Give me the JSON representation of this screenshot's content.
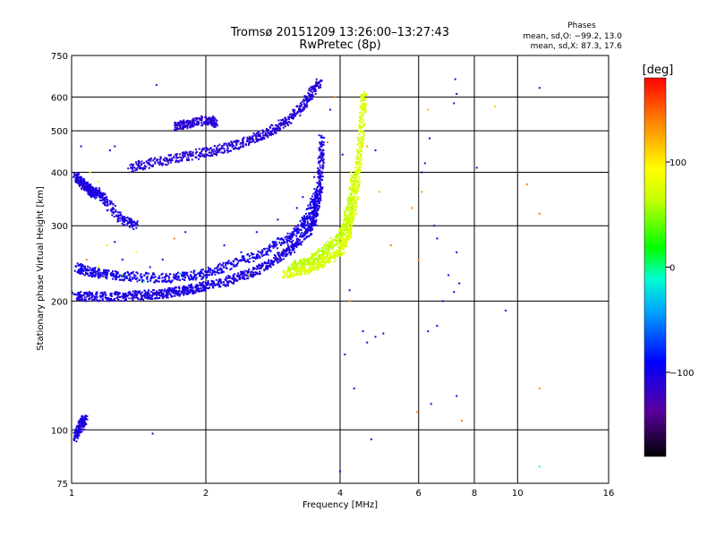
{
  "chart_data": {
    "type": "scatter",
    "title": "Tromsø 20151209 13:26:00–13:27:43",
    "subtitle": "RwPretec (8p)",
    "xlabel": "Frequency [MHz]",
    "ylabel": "Stationary phase Virtual Height [km]",
    "x_scale": "log",
    "y_scale": "log",
    "xlim": [
      1,
      16
    ],
    "ylim": [
      75,
      750
    ],
    "x_ticks": [
      1,
      2,
      4,
      6,
      8,
      10,
      16
    ],
    "x_tick_labels": [
      "1",
      "2",
      "4",
      "6",
      "8",
      "10",
      "16"
    ],
    "y_ticks": [
      75,
      100,
      200,
      300,
      400,
      500,
      600,
      750
    ],
    "y_tick_labels": [
      "75",
      "100",
      "200",
      "300",
      "400",
      "500",
      "600",
      "750"
    ],
    "grid": true,
    "stats": {
      "heading": "Phases",
      "o_line": "mean, sd,O: −99.2, 13.0",
      "x_line": "mean, sd,X:  87.3, 17.6"
    },
    "colorbar": {
      "label": "[deg]",
      "range": [
        -180,
        180
      ],
      "ticks": [
        100,
        0,
        -100
      ],
      "tick_labels": [
        "100",
        "0",
        "−100"
      ]
    },
    "traces": [
      {
        "name_hidden": "",
        "points": [
          [
            1.02,
            205
          ],
          [
            1.1,
            205
          ],
          [
            1.2,
            205
          ],
          [
            1.3,
            205
          ],
          [
            1.4,
            206
          ],
          [
            1.5,
            207
          ],
          [
            1.6,
            208
          ],
          [
            1.7,
            210
          ],
          [
            1.8,
            212
          ],
          [
            1.9,
            214
          ],
          [
            2.0,
            217
          ],
          [
            2.2,
            222
          ],
          [
            2.4,
            228
          ],
          [
            2.6,
            236
          ],
          [
            2.8,
            246
          ],
          [
            3.0,
            258
          ],
          [
            3.2,
            272
          ],
          [
            3.4,
            292
          ],
          [
            3.5,
            310
          ],
          [
            3.55,
            335
          ],
          [
            3.6,
            370
          ],
          [
            3.62,
            420
          ],
          [
            3.64,
            480
          ]
        ],
        "value": -105
      },
      {
        "points": [
          [
            1.35,
            410
          ],
          [
            1.5,
            420
          ],
          [
            1.7,
            430
          ],
          [
            1.9,
            440
          ],
          [
            2.1,
            450
          ],
          [
            2.3,
            460
          ],
          [
            2.5,
            475
          ],
          [
            2.7,
            490
          ],
          [
            2.9,
            510
          ],
          [
            3.1,
            535
          ],
          [
            3.3,
            570
          ],
          [
            3.45,
            610
          ],
          [
            3.6,
            650
          ]
        ],
        "value": -110
      },
      {
        "points": [
          [
            1.02,
            390
          ],
          [
            1.05,
            380
          ],
          [
            1.08,
            370
          ],
          [
            1.1,
            365
          ],
          [
            1.12,
            355
          ],
          [
            1.15,
            360
          ],
          [
            1.2,
            340
          ],
          [
            1.3,
            310
          ],
          [
            1.4,
            300
          ]
        ],
        "value": -105
      },
      {
        "points": [
          [
            1.03,
            240
          ],
          [
            1.08,
            235
          ],
          [
            1.15,
            232
          ],
          [
            1.25,
            230
          ],
          [
            1.4,
            228
          ],
          [
            1.6,
            226
          ],
          [
            1.8,
            228
          ],
          [
            2.0,
            232
          ],
          [
            2.2,
            240
          ],
          [
            2.5,
            252
          ],
          [
            2.8,
            266
          ],
          [
            3.1,
            282
          ],
          [
            3.3,
            300
          ],
          [
            3.45,
            330
          ],
          [
            3.55,
            360
          ]
        ],
        "value": -100
      },
      {
        "points": [
          [
            3.0,
            232
          ],
          [
            3.2,
            234
          ],
          [
            3.4,
            238
          ],
          [
            3.6,
            244
          ],
          [
            3.8,
            252
          ],
          [
            4.0,
            262
          ],
          [
            4.1,
            275
          ],
          [
            4.2,
            295
          ],
          [
            4.3,
            330
          ],
          [
            4.35,
            370
          ],
          [
            4.4,
            420
          ],
          [
            4.45,
            480
          ],
          [
            4.5,
            560
          ],
          [
            4.52,
            610
          ]
        ],
        "value": 75
      },
      {
        "points": [
          [
            3.1,
            240
          ],
          [
            3.3,
            245
          ],
          [
            3.5,
            252
          ],
          [
            3.7,
            262
          ],
          [
            3.9,
            276
          ],
          [
            4.05,
            292
          ],
          [
            4.15,
            315
          ],
          [
            4.25,
            350
          ],
          [
            4.3,
            400
          ]
        ],
        "value": 65
      },
      {
        "points": [
          [
            1.7,
            510
          ],
          [
            1.8,
            520
          ],
          [
            1.9,
            525
          ],
          [
            2.05,
            530
          ],
          [
            2.1,
            520
          ]
        ],
        "value": -110
      },
      {
        "points": [
          [
            1.02,
            96
          ],
          [
            1.04,
            100
          ],
          [
            1.06,
            104
          ],
          [
            1.07,
            106
          ]
        ],
        "value": -105
      }
    ],
    "scatter": [
      [
        1.55,
        640,
        -115
      ],
      [
        6.3,
        560,
        120
      ],
      [
        7.25,
        660,
        -110
      ],
      [
        7.3,
        610,
        -100
      ],
      [
        7.2,
        580,
        -100
      ],
      [
        8.9,
        570,
        110
      ],
      [
        11.2,
        630,
        -110
      ],
      [
        6.35,
        480,
        -100
      ],
      [
        6.2,
        420,
        -110
      ],
      [
        6.1,
        400,
        -105
      ],
      [
        8.1,
        410,
        -110
      ],
      [
        10.5,
        375,
        140
      ],
      [
        11.2,
        320,
        140
      ],
      [
        6.1,
        360,
        130
      ],
      [
        6.5,
        300,
        -100
      ],
      [
        6.6,
        280,
        -105
      ],
      [
        7.0,
        230,
        -100
      ],
      [
        7.3,
        260,
        -100
      ],
      [
        7.4,
        220,
        -105
      ],
      [
        7.2,
        210,
        -100
      ],
      [
        6.0,
        250,
        130
      ],
      [
        6.8,
        200,
        -110
      ],
      [
        5.2,
        270,
        140
      ],
      [
        5.8,
        330,
        140
      ],
      [
        4.9,
        360,
        120
      ],
      [
        4.2,
        212,
        -120
      ],
      [
        4.2,
        200,
        140
      ],
      [
        4.5,
        170,
        -100
      ],
      [
        4.6,
        160,
        -100
      ],
      [
        4.8,
        165,
        -105
      ],
      [
        5.0,
        168,
        -110
      ],
      [
        4.3,
        125,
        -105
      ],
      [
        4.1,
        150,
        -105
      ],
      [
        6.3,
        170,
        -100
      ],
      [
        6.6,
        175,
        -100
      ],
      [
        5.95,
        110,
        130
      ],
      [
        6.4,
        115,
        -110
      ],
      [
        7.3,
        120,
        -110
      ],
      [
        7.5,
        105,
        140
      ],
      [
        9.4,
        190,
        -110
      ],
      [
        11.2,
        125,
        130
      ],
      [
        4.7,
        95,
        -110
      ],
      [
        1.52,
        98,
        -110
      ],
      [
        4.0,
        80,
        -110
      ],
      [
        11.2,
        82,
        -10
      ],
      [
        1.3,
        250,
        -100
      ],
      [
        1.4,
        260,
        90
      ],
      [
        1.5,
        240,
        -100
      ],
      [
        1.7,
        280,
        140
      ],
      [
        1.8,
        290,
        -100
      ],
      [
        1.2,
        270,
        70
      ],
      [
        1.25,
        275,
        -100
      ],
      [
        1.6,
        250,
        -100
      ],
      [
        2.2,
        270,
        -100
      ],
      [
        2.4,
        260,
        -100
      ],
      [
        2.6,
        290,
        -100
      ],
      [
        2.9,
        310,
        -100
      ],
      [
        3.2,
        330,
        -110
      ],
      [
        3.3,
        350,
        -100
      ],
      [
        3.5,
        390,
        -100
      ],
      [
        3.8,
        560,
        -100
      ],
      [
        3.75,
        470,
        140
      ],
      [
        3.9,
        600,
        140
      ],
      [
        4.05,
        440,
        -100
      ],
      [
        4.6,
        460,
        130
      ],
      [
        4.8,
        450,
        -100
      ],
      [
        1.1,
        400,
        70
      ],
      [
        1.15,
        380,
        80
      ],
      [
        1.22,
        450,
        -100
      ],
      [
        1.25,
        460,
        -110
      ],
      [
        1.05,
        460,
        -100
      ],
      [
        1.3,
        230,
        20
      ],
      [
        1.45,
        222,
        10
      ],
      [
        1.75,
        232,
        -20
      ],
      [
        2.5,
        230,
        90
      ],
      [
        1.15,
        240,
        90
      ],
      [
        1.08,
        250,
        140
      ]
    ]
  }
}
